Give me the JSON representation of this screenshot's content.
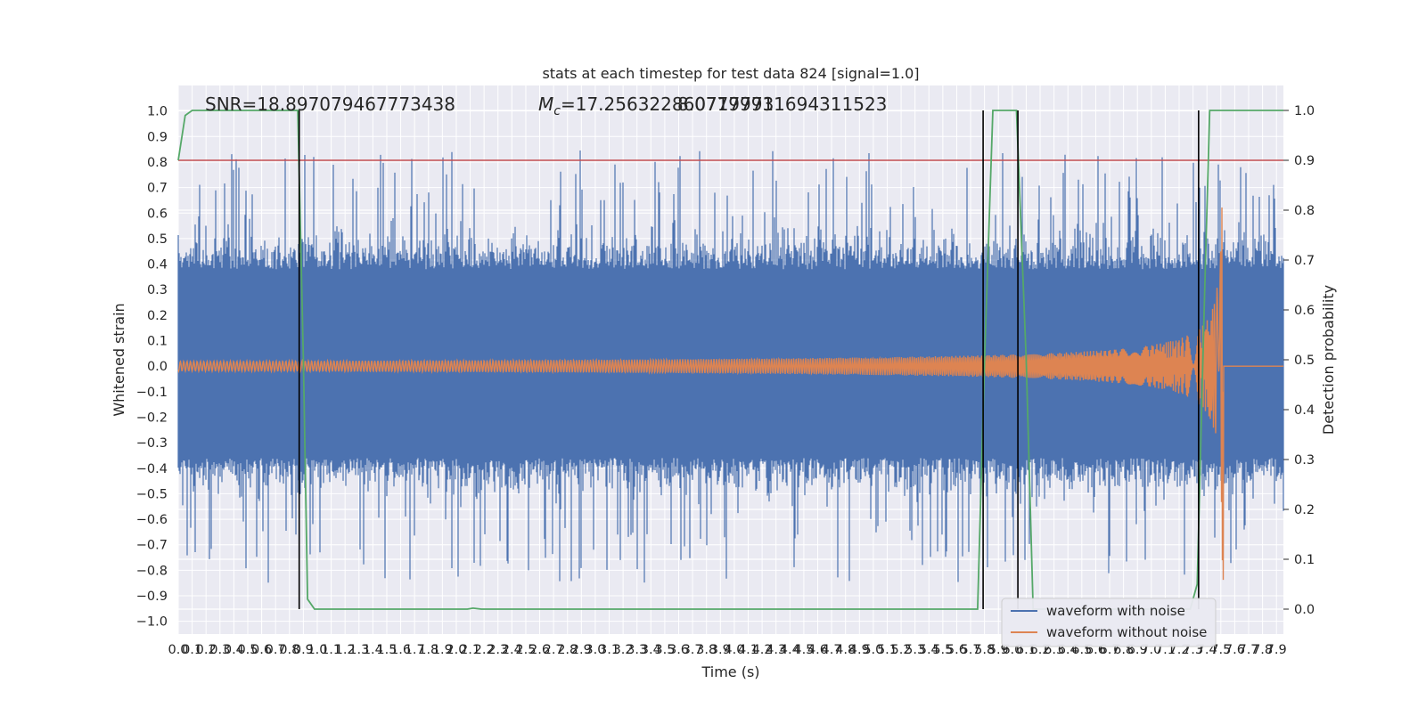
{
  "chart_data": {
    "type": "line",
    "title": "stats at each timestep for test data 824 [signal=1.0]",
    "xlabel": "Time (s)",
    "ylabel_left": "Whitened strain",
    "ylabel_right": "Detection probability",
    "xlim": [
      0.0,
      7.95
    ],
    "ylim_left": [
      -1.05,
      1.1
    ],
    "ylim_right": [
      -0.05,
      1.05
    ],
    "x_ticks": [
      "0.0",
      "0.1",
      "0.2",
      "0.3",
      "0.4",
      "0.5",
      "0.6",
      "0.7",
      "0.8",
      "0.9",
      "1.0",
      "1.1",
      "1.2",
      "1.3",
      "1.4",
      "1.5",
      "1.6",
      "1.7",
      "1.8",
      "1.9",
      "2.0",
      "2.1",
      "2.2",
      "2.3",
      "2.4",
      "2.5",
      "2.6",
      "2.7",
      "2.8",
      "2.9",
      "3.0",
      "3.1",
      "3.2",
      "3.3",
      "3.4",
      "3.5",
      "3.6",
      "3.7",
      "3.8",
      "3.9",
      "4.0",
      "4.1",
      "4.2",
      "4.3",
      "4.4",
      "4.5",
      "4.6",
      "4.7",
      "4.8",
      "4.9",
      "5.0",
      "5.1",
      "5.2",
      "5.3",
      "5.4",
      "5.5",
      "5.6",
      "5.7",
      "5.8",
      "5.9",
      "6.0",
      "6.1",
      "6.2",
      "6.3",
      "6.4",
      "6.5",
      "6.6",
      "6.7",
      "6.8",
      "6.9",
      "7.0",
      "7.1",
      "7.2",
      "7.3",
      "7.4",
      "7.5",
      "7.6",
      "7.7",
      "7.8",
      "7.9"
    ],
    "y_ticks_left": [
      "1.0",
      "0.9",
      "0.8",
      "0.7",
      "0.6",
      "0.5",
      "0.4",
      "0.3",
      "0.2",
      "0.1",
      "0.0",
      "−0.1",
      "−0.2",
      "−0.3",
      "−0.4",
      "−0.5",
      "−0.6",
      "−0.7",
      "−0.8",
      "−0.9",
      "−1.0"
    ],
    "y_ticks_right": [
      "1.0",
      "0.9",
      "0.8",
      "0.7",
      "0.6",
      "0.5",
      "0.4",
      "0.3",
      "0.2",
      "0.1",
      "0.0"
    ],
    "annotations": {
      "snr": "SNR=18.897079467773438",
      "mc_prefix": "M",
      "mc_sub": "c",
      "mc_value": "=17.256322860717773",
      "overlap": "8.07799911694311523"
    },
    "threshold_right": 0.9,
    "vertical_lines_x": [
      0.87,
      5.79,
      6.04,
      7.34
    ],
    "series": [
      {
        "name": "waveform with noise",
        "color": "#4c72b0",
        "axis": "left",
        "noise_amplitude": 0.85
      },
      {
        "name": "waveform without noise",
        "color": "#dd8452",
        "axis": "left",
        "merger_time": 7.52
      },
      {
        "axis": "right",
        "color": "#55a868",
        "values": [
          [
            0.0,
            0.9
          ],
          [
            0.05,
            0.99
          ],
          [
            0.1,
            1.0
          ],
          [
            0.86,
            1.0
          ],
          [
            0.9,
            0.5
          ],
          [
            0.93,
            0.02
          ],
          [
            0.98,
            0.0
          ],
          [
            2.08,
            0.0
          ],
          [
            2.12,
            0.002
          ],
          [
            2.18,
            0.0
          ],
          [
            5.75,
            0.0
          ],
          [
            5.8,
            0.5
          ],
          [
            5.86,
            1.0
          ],
          [
            6.03,
            1.0
          ],
          [
            6.1,
            0.5
          ],
          [
            6.15,
            0.0
          ],
          [
            7.28,
            0.0
          ],
          [
            7.33,
            0.05
          ],
          [
            7.38,
            0.6
          ],
          [
            7.42,
            1.0
          ],
          [
            7.95,
            1.0
          ]
        ]
      },
      {
        "axis": "right",
        "color": "#c44e52",
        "values": [
          [
            0.0,
            0.9
          ],
          [
            7.95,
            0.9
          ]
        ]
      }
    ],
    "legend": {
      "location": "lower-right"
    },
    "grid": true,
    "style": {
      "background": "#eaeaf2",
      "grid_color": "#ffffff"
    }
  }
}
